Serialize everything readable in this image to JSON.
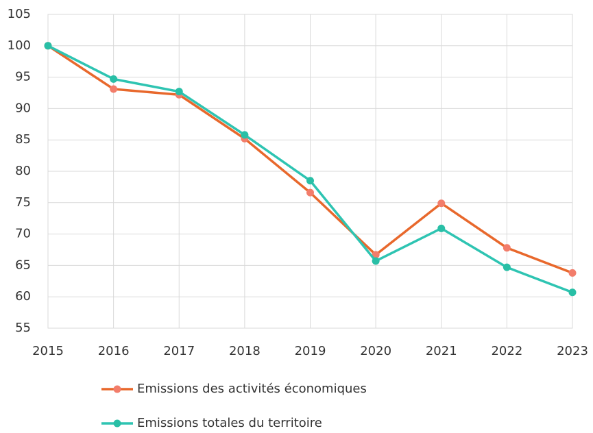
{
  "chart_data": {
    "type": "line",
    "x": [
      2015,
      2016,
      2017,
      2018,
      2019,
      2020,
      2021,
      2022,
      2023
    ],
    "series": [
      {
        "name": "Emissions des activités économiques",
        "color": "#e8682c",
        "marker_color": "#f27d6b",
        "values": [
          100,
          93.1,
          92.2,
          85.2,
          76.6,
          66.7,
          74.9,
          67.8,
          63.8
        ]
      },
      {
        "name": "Emissions totales du territoire",
        "color": "#2ec4b2",
        "marker_color": "#29bfa6",
        "values": [
          100,
          94.7,
          92.7,
          85.8,
          78.5,
          65.7,
          70.9,
          64.7,
          60.7
        ]
      }
    ],
    "xlim": [
      2015,
      2023
    ],
    "xticks": [
      2015,
      2016,
      2017,
      2018,
      2019,
      2020,
      2021,
      2022,
      2023
    ],
    "ylim": [
      55,
      105
    ],
    "yticks": [
      55,
      60,
      65,
      70,
      75,
      80,
      85,
      90,
      95,
      100,
      105
    ],
    "grid": true,
    "legend": "bottom"
  }
}
